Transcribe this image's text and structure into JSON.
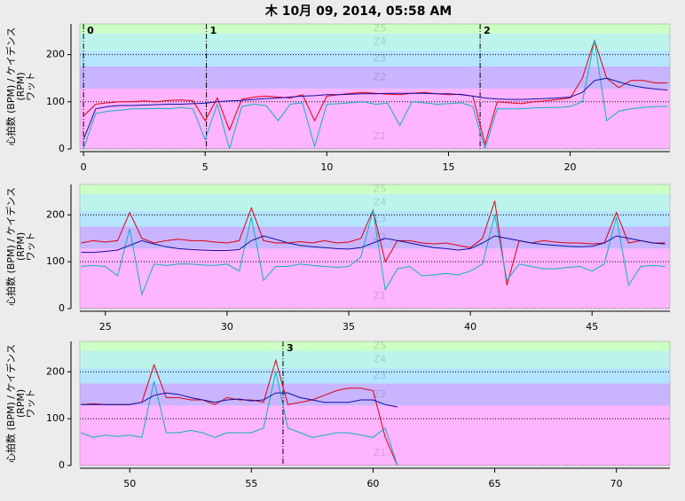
{
  "title": "木 10月 09, 2014, 05:58 AM",
  "y_label": [
    "心拍数 (BPM) / ケイデンス",
    "(RPM)",
    "ワット"
  ],
  "zones": [
    {
      "name": "Z1",
      "from": 0,
      "to": 128,
      "color": "#ffb4ff"
    },
    {
      "name": "Z2",
      "from": 128,
      "to": 175,
      "color": "#c8b4ff"
    },
    {
      "name": "Z3",
      "from": 175,
      "to": 208,
      "color": "#b4e4ff"
    },
    {
      "name": "Z4",
      "from": 208,
      "to": 245,
      "color": "#bcf4ec"
    },
    {
      "name": "Z5",
      "from": 245,
      "to": 265,
      "color": "#ccffc4"
    }
  ],
  "chart_data": [
    {
      "type": "line",
      "xlim": [
        -0.15,
        24.1
      ],
      "ylim": [
        0,
        265
      ],
      "xticks": [
        0,
        5,
        10,
        15,
        20
      ],
      "yticks": [
        0,
        100,
        200
      ],
      "grid": true,
      "markers": [
        {
          "label": "0",
          "x": 0
        },
        {
          "label": "1",
          "x": 5.05
        },
        {
          "label": "2",
          "x": 16.3
        }
      ],
      "x": [
        0,
        0.5,
        1,
        1.5,
        2,
        2.5,
        3,
        3.5,
        4,
        4.5,
        5,
        5.5,
        6,
        6.5,
        7,
        7.5,
        8,
        8.5,
        9,
        9.5,
        10,
        10.5,
        11,
        11.5,
        12,
        12.5,
        13,
        13.5,
        14,
        14.5,
        15,
        15.5,
        16,
        16.5,
        17,
        17.5,
        18,
        18.5,
        19,
        19.5,
        20,
        20.5,
        21,
        21.5,
        22,
        22.5,
        23,
        23.5,
        24
      ],
      "series": [
        {
          "color": "#e00010",
          "values": [
            70,
            95,
            98,
            100,
            100,
            102,
            100,
            103,
            104,
            102,
            60,
            108,
            40,
            105,
            110,
            112,
            110,
            108,
            115,
            60,
            112,
            115,
            118,
            120,
            118,
            116,
            115,
            118,
            120,
            117,
            115,
            116,
            112,
            10,
            100,
            98,
            96,
            100,
            102,
            105,
            108,
            150,
            230,
            150,
            130,
            145,
            145,
            140,
            140
          ]
        },
        {
          "color": "#10b0c0",
          "values": [
            0,
            75,
            80,
            82,
            85,
            85,
            86,
            85,
            88,
            85,
            20,
            95,
            0,
            90,
            95,
            92,
            60,
            95,
            98,
            5,
            95,
            96,
            98,
            100,
            95,
            97,
            50,
            100,
            98,
            95,
            96,
            98,
            90,
            0,
            85,
            85,
            85,
            87,
            88,
            88,
            90,
            100,
            230,
            60,
            80,
            85,
            88,
            90,
            90
          ]
        },
        {
          "color": "#1010a0",
          "values": [
            20,
            85,
            90,
            92,
            92,
            93,
            94,
            95,
            95,
            96,
            97,
            100,
            102,
            103,
            105,
            107,
            108,
            110,
            112,
            113,
            115,
            115,
            116,
            117,
            117,
            118,
            118,
            118,
            118,
            117,
            117,
            115,
            112,
            108,
            106,
            105,
            105,
            106,
            107,
            108,
            110,
            120,
            145,
            150,
            142,
            135,
            130,
            127,
            125
          ]
        }
      ]
    },
    {
      "type": "line",
      "xlim": [
        23.95,
        48.2
      ],
      "ylim": [
        0,
        265
      ],
      "xticks": [
        25,
        30,
        35,
        40,
        45
      ],
      "yticks": [
        0,
        100,
        200
      ],
      "grid": true,
      "markers": [],
      "x": [
        24,
        24.5,
        25,
        25.5,
        26,
        26.5,
        27,
        27.5,
        28,
        28.5,
        29,
        29.5,
        30,
        30.5,
        31,
        31.5,
        32,
        32.5,
        33,
        33.5,
        34,
        34.5,
        35,
        35.5,
        36,
        36.5,
        37,
        37.5,
        38,
        38.5,
        39,
        39.5,
        40,
        40.5,
        41,
        41.5,
        42,
        42.5,
        43,
        43.5,
        44,
        44.5,
        45,
        45.5,
        46,
        46.5,
        47,
        47.5,
        48
      ],
      "series": [
        {
          "color": "#e00010",
          "values": [
            140,
            145,
            142,
            145,
            205,
            150,
            140,
            145,
            148,
            145,
            145,
            142,
            140,
            145,
            215,
            145,
            140,
            140,
            143,
            140,
            145,
            140,
            142,
            150,
            210,
            100,
            145,
            145,
            140,
            138,
            140,
            135,
            130,
            150,
            230,
            50,
            145,
            140,
            145,
            142,
            140,
            140,
            138,
            140,
            205,
            140,
            145,
            140,
            140
          ]
        },
        {
          "color": "#10b0c0",
          "values": [
            90,
            92,
            90,
            70,
            170,
            30,
            95,
            92,
            95,
            95,
            93,
            92,
            95,
            80,
            195,
            60,
            90,
            90,
            95,
            92,
            90,
            88,
            90,
            110,
            210,
            40,
            85,
            90,
            70,
            72,
            75,
            72,
            80,
            95,
            200,
            60,
            95,
            90,
            85,
            85,
            88,
            90,
            80,
            95,
            195,
            50,
            90,
            92,
            90
          ]
        },
        {
          "color": "#1010a0",
          "values": [
            120,
            120,
            122,
            125,
            135,
            145,
            138,
            132,
            128,
            126,
            125,
            124,
            124,
            126,
            145,
            155,
            148,
            140,
            135,
            132,
            130,
            128,
            127,
            130,
            140,
            150,
            145,
            140,
            135,
            130,
            128,
            125,
            128,
            140,
            155,
            150,
            145,
            140,
            137,
            135,
            133,
            132,
            133,
            140,
            155,
            150,
            145,
            140,
            138
          ]
        }
      ]
    },
    {
      "type": "line",
      "xlim": [
        47.95,
        72.2
      ],
      "ylim": [
        0,
        265
      ],
      "xticks": [
        50,
        55,
        60,
        65,
        70
      ],
      "yticks": [
        0,
        100,
        200
      ],
      "grid": true,
      "markers": [
        {
          "label": "3",
          "x": 56.3
        }
      ],
      "x": [
        48,
        48.5,
        49,
        49.5,
        50,
        50.5,
        51,
        51.5,
        52,
        52.5,
        53,
        53.5,
        54,
        54.5,
        55,
        55.5,
        56,
        56.5,
        57,
        57.5,
        58,
        58.5,
        59,
        59.5,
        60,
        60.5,
        61
      ],
      "series": [
        {
          "color": "#e00010",
          "values": [
            130,
            132,
            130,
            130,
            130,
            135,
            215,
            145,
            145,
            140,
            140,
            130,
            145,
            140,
            140,
            135,
            225,
            130,
            135,
            140,
            150,
            160,
            165,
            165,
            160,
            60,
            0
          ]
        },
        {
          "color": "#10b0c0",
          "values": [
            70,
            60,
            65,
            62,
            65,
            60,
            180,
            70,
            70,
            75,
            70,
            60,
            70,
            70,
            70,
            80,
            200,
            80,
            70,
            60,
            65,
            70,
            70,
            65,
            60,
            80,
            0
          ]
        },
        {
          "color": "#1010a0",
          "values": [
            130,
            130,
            130,
            130,
            130,
            135,
            150,
            155,
            152,
            145,
            140,
            135,
            140,
            142,
            138,
            140,
            155,
            155,
            145,
            140,
            135,
            135,
            135,
            140,
            140,
            130,
            125
          ]
        }
      ]
    }
  ]
}
